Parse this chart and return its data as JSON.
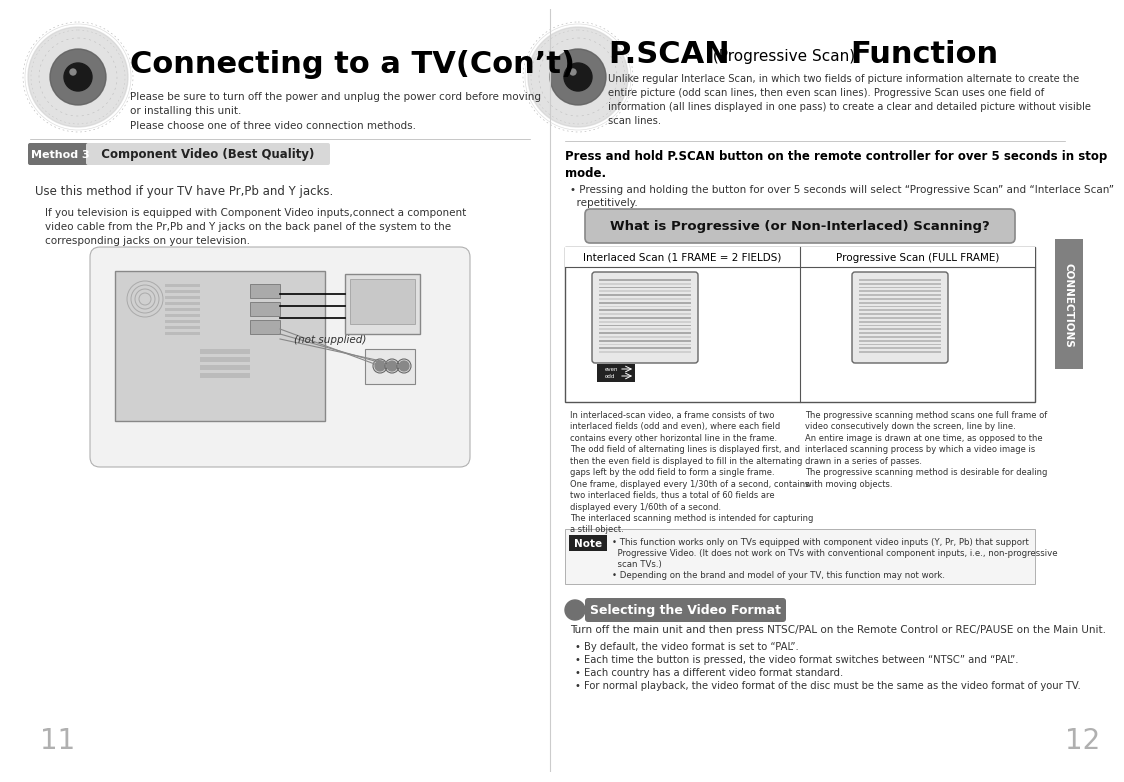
{
  "bg_color": "#ffffff",
  "left_title": "Connecting to a TV(Con’t)",
  "right_title_bold1": "P.SCAN",
  "right_title_small": " (Progressive Scan) ",
  "right_title_bold2": "Function",
  "left_subtitle": "Please be sure to turn off the power and unplug the power cord before moving\nor installing this unit.\nPlease choose one of three video connection methods.",
  "right_subtitle": "Unlike regular Interlace Scan, in which two fields of picture information alternate to create the\nentire picture (odd scan lines, then even scan lines). Progressive Scan uses one field of\ninformation (all lines displayed in one pass) to create a clear and detailed picture without visible\nscan lines.",
  "method_label": "Method 3",
  "method_title": "  Component Video (Best Quality)",
  "method_body1": "Use this method if your TV have Pr,Pb and Y jacks.",
  "method_body2": "If you television is equipped with Component Video inputs,connect a component\nvideo cable from the Pr,Pb and Y jacks on the back panel of the system to the\ncorresponding jacks on your television.",
  "not_supplied": "(not supplied)",
  "pscan_instruction_bold": "Press and hold P.SCAN button on the remote controller for over 5 seconds in stop\nmode.",
  "pscan_instruction_body": "• Pressing and holding the button for over 5 seconds will select “Progressive Scan” and “Interlace Scan”\n  repetitively.",
  "what_is_label": "What is Progressive (or Non-Interlaced) Scanning?",
  "interlaced_label": "Interlaced Scan (1 FRAME = 2 FIELDS)",
  "progressive_label": "Progressive Scan (FULL FRAME)",
  "interlaced_desc": "In interlaced-scan video, a frame consists of two\ninterlaced fields (odd and even), where each field\ncontains every other horizontal line in the frame.\nThe odd field of alternating lines is displayed first, and\nthen the even field is displayed to fill in the alternating\ngaps left by the odd field to form a single frame.\nOne frame, displayed every 1/30th of a second, contains\ntwo interlaced fields, thus a total of 60 fields are\ndisplayed every 1/60th of a second.\nThe interlaced scanning method is intended for capturing\na still object.",
  "progressive_desc": "The progressive scanning method scans one full frame of\nvideo consecutively down the screen, line by line.\nAn entire image is drawn at one time, as opposed to the\ninterlaced scanning process by which a video image is\ndrawn in a series of passes.\nThe progressive scanning method is desirable for dealing\nwith moving objects.",
  "note_label": "Note",
  "note_text1": "• This function works only on TVs equipped with component video inputs (Y, Pr, Pb) that support",
  "note_text2": "  Progressive Video. (It does not work on TVs with conventional component inputs, i.e., non-progressive",
  "note_text3": "  scan TVs.)",
  "note_text4": "• Depending on the brand and model of your TV, this function may not work.",
  "selecting_label": "Selecting the Video Format",
  "selecting_body": "Turn off the main unit and then press NTSC/PAL on the Remote Control or REC/PAUSE on the Main Unit.",
  "selecting_body_bold": "NTSC/PAL",
  "selecting_body_bold2": "REC/PAUSE",
  "selecting_bullets": [
    "• By default, the video format is set to “PAL”.",
    "• Each time the button is pressed, the video format switches between “NTSC” and “PAL”.",
    "• Each country has a different video format standard.",
    "• For normal playback, the video format of the disc must be the same as the video format of your TV."
  ],
  "connections_tab": "CONNECTIONS",
  "page_left": "11",
  "page_right": "12",
  "gray_light": "#d8d8d8",
  "gray_medium": "#b0b0b0",
  "gray_dark": "#707070",
  "gray_tab": "#808080",
  "black": "#000000",
  "divider_color": "#cccccc"
}
